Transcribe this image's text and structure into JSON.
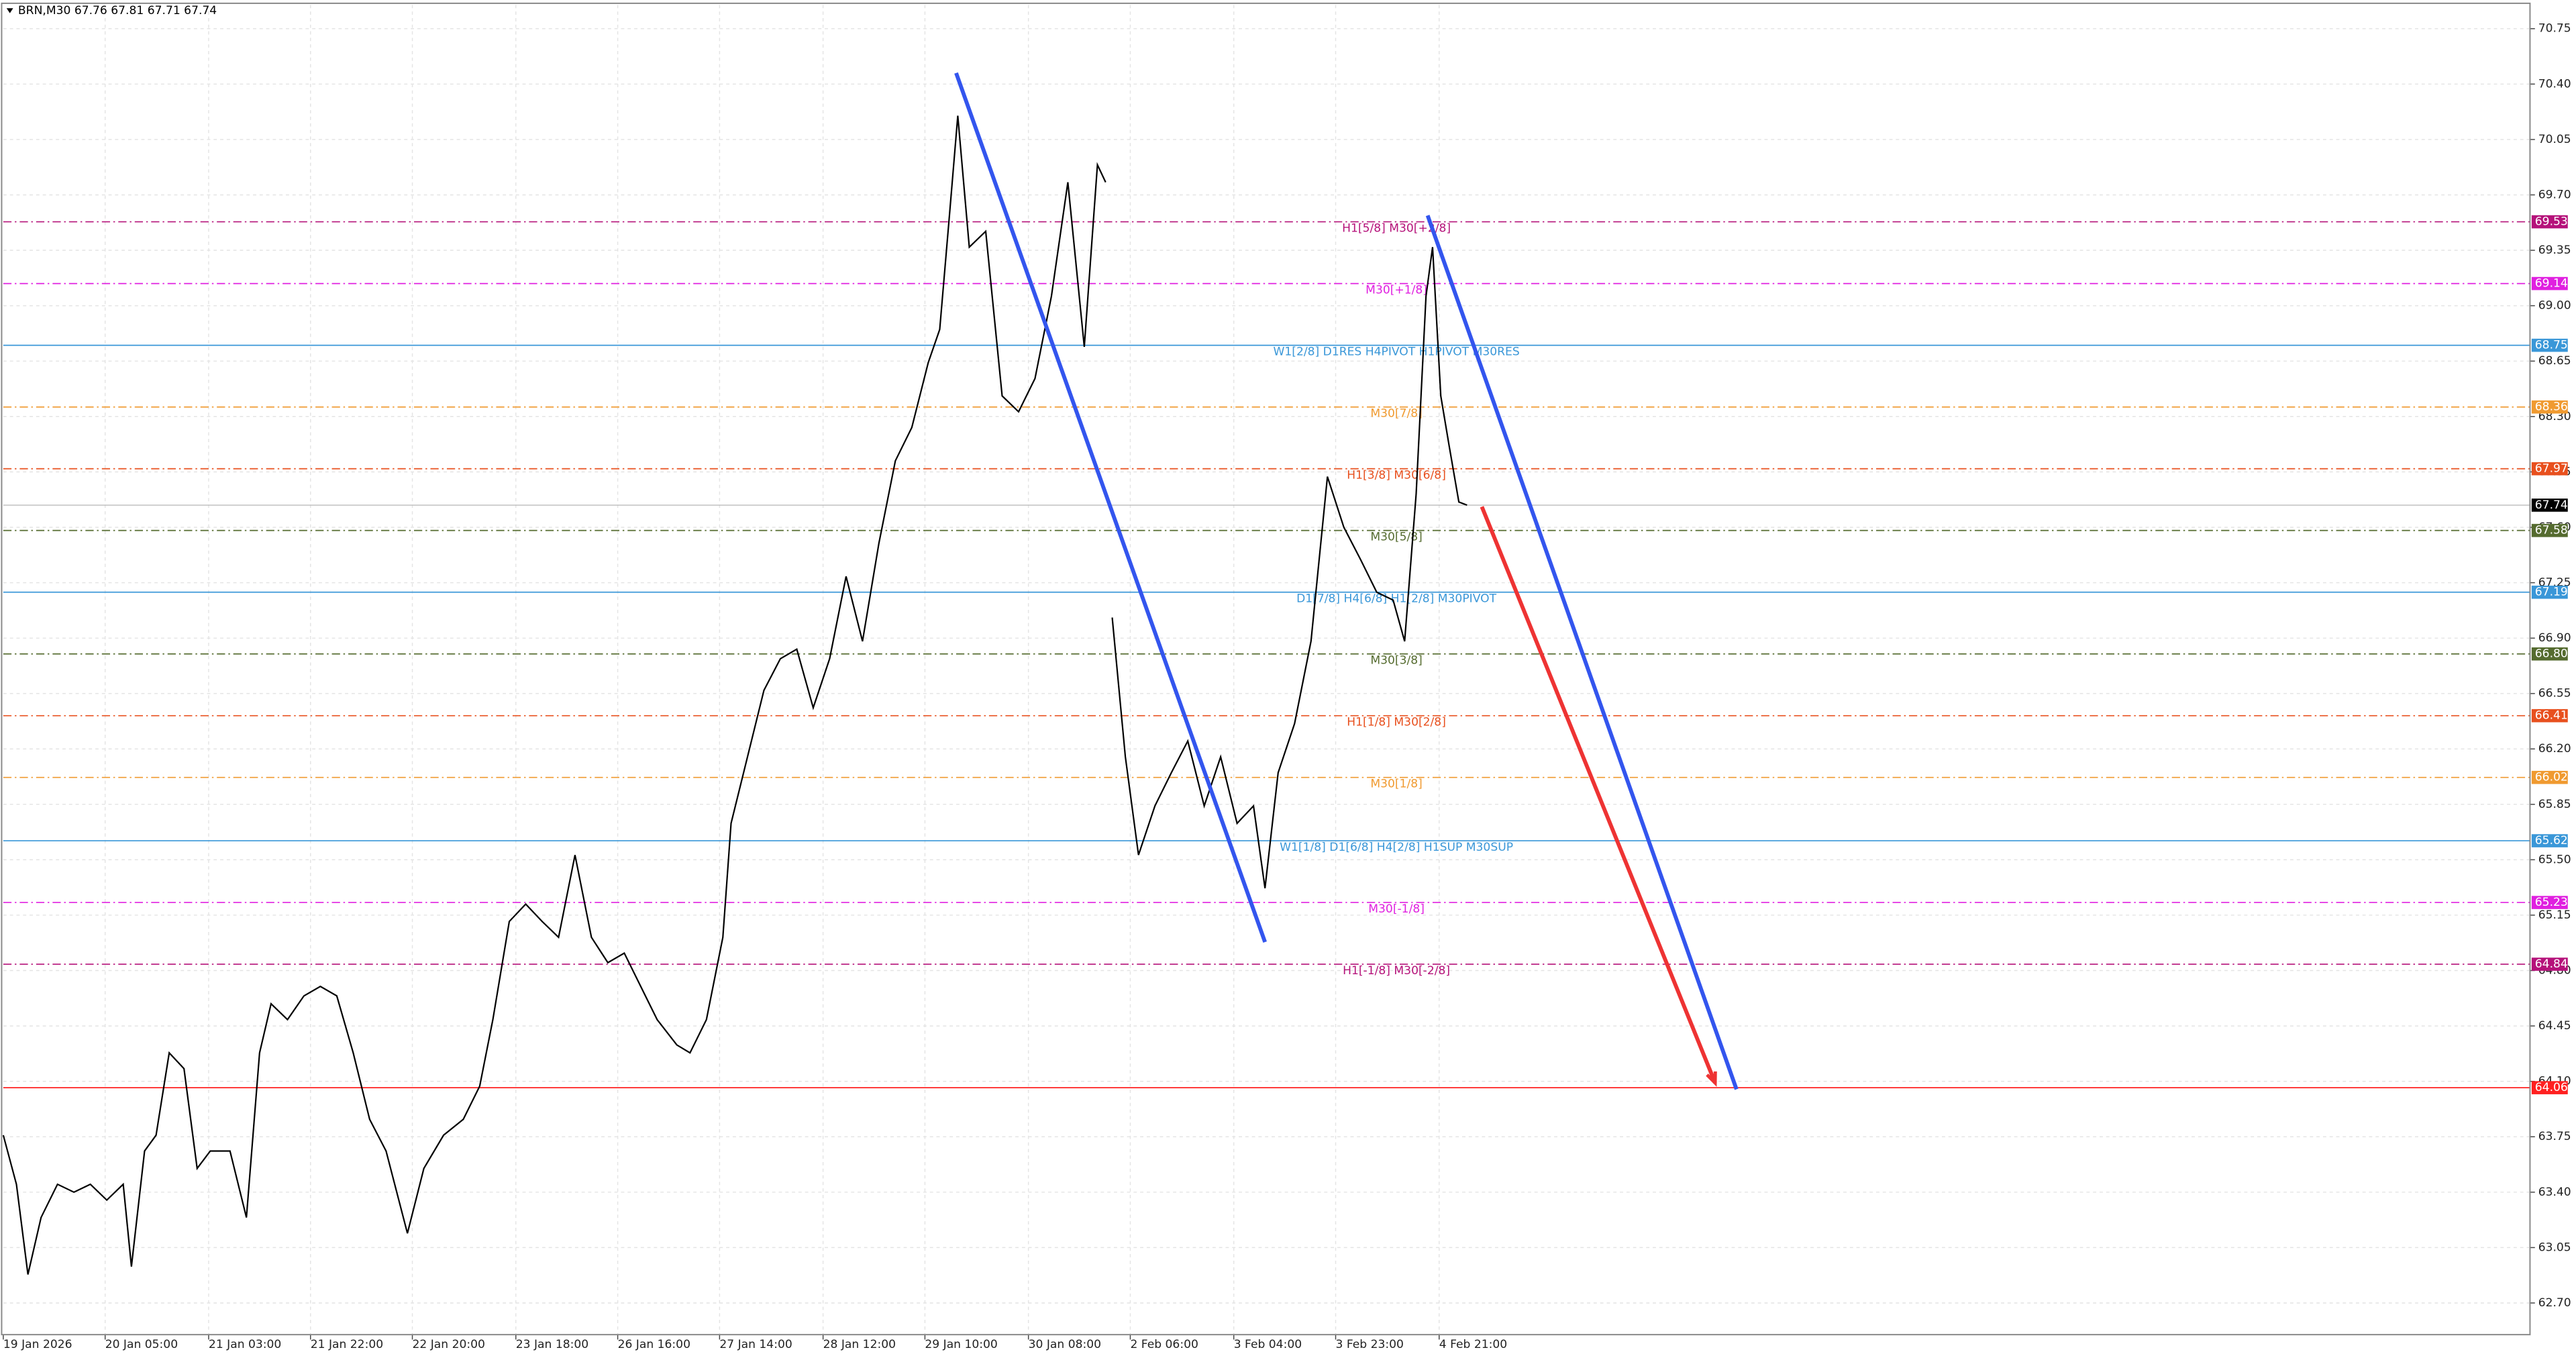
{
  "chart_data": {
    "type": "line",
    "title": "BRN,M30  67.76 67.81 67.71 67.74",
    "grid": true,
    "xlim": [
      0,
      1538
    ],
    "ylim": [
      62.5,
      70.9
    ],
    "xticks": [
      {
        "value": 0,
        "label": "19 Jan 2026"
      },
      {
        "value": 62,
        "label": "20 Jan 05:00"
      },
      {
        "value": 125,
        "label": "21 Jan 03:00"
      },
      {
        "value": 187,
        "label": "21 Jan 22:00"
      },
      {
        "value": 249,
        "label": "22 Jan 20:00"
      },
      {
        "value": 312,
        "label": "23 Jan 18:00"
      },
      {
        "value": 374,
        "label": "26 Jan 16:00"
      },
      {
        "value": 436,
        "label": "27 Jan 14:00"
      },
      {
        "value": 499,
        "label": "28 Jan 12:00"
      },
      {
        "value": 561,
        "label": "29 Jan 10:00"
      },
      {
        "value": 624,
        "label": "30 Jan 08:00"
      },
      {
        "value": 686,
        "label": "2 Feb 06:00"
      },
      {
        "value": 749,
        "label": "3 Feb 04:00"
      },
      {
        "value": 811,
        "label": "3 Feb 23:00"
      },
      {
        "value": 874,
        "label": "4 Feb 21:00"
      }
    ],
    "yticks": [
      {
        "value": 70.75,
        "label": "70.75"
      },
      {
        "value": 70.4,
        "label": "70.40"
      },
      {
        "value": 70.05,
        "label": "70.05"
      },
      {
        "value": 69.7,
        "label": "69.70"
      },
      {
        "value": 69.35,
        "label": "69.35"
      },
      {
        "value": 69.0,
        "label": "69.00"
      },
      {
        "value": 68.65,
        "label": "68.65"
      },
      {
        "value": 68.3,
        "label": "68.30"
      },
      {
        "value": 67.95,
        "label": "67.95"
      },
      {
        "value": 67.6,
        "label": "67.60"
      },
      {
        "value": 67.25,
        "label": "67.25"
      },
      {
        "value": 66.9,
        "label": "66.90"
      },
      {
        "value": 66.55,
        "label": "66.55"
      },
      {
        "value": 66.2,
        "label": "66.20"
      },
      {
        "value": 65.85,
        "label": "65.85"
      },
      {
        "value": 65.5,
        "label": "65.50"
      },
      {
        "value": 65.15,
        "label": "65.15"
      },
      {
        "value": 64.8,
        "label": "64.80"
      },
      {
        "value": 64.45,
        "label": "64.45"
      },
      {
        "value": 64.1,
        "label": "64.10"
      },
      {
        "value": 63.75,
        "label": "63.75"
      },
      {
        "value": 63.4,
        "label": "63.40"
      },
      {
        "value": 63.05,
        "label": "63.05"
      },
      {
        "value": 62.7,
        "label": "62.70"
      }
    ],
    "series": [
      {
        "name": "BRN",
        "color": "#000000",
        "x": [
          0,
          8,
          15,
          23,
          33,
          43,
          53,
          63,
          73,
          78,
          86,
          93,
          101,
          110,
          118,
          126,
          138,
          148,
          156,
          163,
          173,
          183,
          193,
          203,
          213,
          223,
          233,
          246,
          256,
          268,
          280,
          290,
          298,
          308,
          318,
          328,
          338,
          348,
          358,
          368,
          378,
          388,
          398,
          410,
          418,
          428,
          438,
          443,
          453,
          463,
          473,
          483,
          493,
          503,
          513,
          523,
          533,
          543,
          553,
          563,
          570,
          576,
          581,
          588,
          598,
          608,
          618,
          628,
          638,
          648,
          658,
          666,
          671,
          673,
          675,
          683,
          691,
          701,
          711,
          721,
          731,
          741,
          751,
          761,
          768,
          776,
          786,
          796,
          806,
          816,
          826,
          836,
          846,
          853,
          860,
          866,
          870,
          875,
          880,
          886,
          891
        ],
        "values": [
          63.76,
          63.45,
          62.88,
          63.24,
          63.45,
          63.4,
          63.45,
          63.35,
          63.45,
          62.93,
          63.66,
          63.76,
          64.28,
          64.18,
          63.55,
          63.66,
          63.66,
          63.24,
          64.28,
          64.59,
          64.49,
          64.64,
          64.7,
          64.64,
          64.28,
          63.86,
          63.66,
          63.14,
          63.55,
          63.76,
          63.86,
          64.07,
          64.49,
          65.11,
          65.22,
          65.11,
          65.01,
          65.53,
          65.01,
          64.85,
          64.91,
          64.7,
          64.49,
          64.33,
          64.28,
          64.49,
          65.01,
          65.73,
          66.15,
          66.57,
          66.77,
          66.83,
          66.46,
          66.77,
          67.29,
          66.88,
          67.5,
          68.02,
          68.23,
          68.64,
          68.85,
          69.58,
          70.2,
          69.37,
          69.47,
          68.43,
          68.33,
          68.54,
          69.06,
          69.78,
          68.74,
          69.89,
          69.78,
          null,
          67.03,
          66.15,
          65.53,
          65.84,
          66.05,
          66.25,
          65.84,
          66.15,
          65.73,
          65.84,
          65.32,
          66.05,
          66.36,
          66.88,
          67.92,
          67.6,
          67.4,
          67.19,
          67.14,
          66.88,
          67.81,
          69.06,
          69.37,
          68.43,
          68.12,
          67.76,
          67.74
        ]
      }
    ],
    "levels": [
      {
        "value": 69.53,
        "text": "H1[5/8] M30[+2/8]",
        "color": "#b5127a",
        "style": "dashdot"
      },
      {
        "value": 69.14,
        "text": "M30[+1/8]",
        "color": "#e020e0",
        "style": "dashdot"
      },
      {
        "value": 68.75,
        "text": "W1[2/8] D1RES H4PIVOT H1PIVOT M30RES",
        "color": "#3a97d8",
        "style": "solid"
      },
      {
        "value": 68.36,
        "text": "M30[7/8]",
        "color": "#f09a30",
        "style": "dashdot"
      },
      {
        "value": 67.97,
        "text": "H1[3/8] M30[6/8]",
        "color": "#e8501e",
        "style": "dashdot"
      },
      {
        "value": 67.58,
        "text": "M30[5/8]",
        "color": "#556b2f",
        "style": "dashdot"
      },
      {
        "value": 67.19,
        "text": "D1[7/8] H4[6/8] H1[2/8] M30PIVOT",
        "color": "#3a97d8",
        "style": "solid"
      },
      {
        "value": 66.8,
        "value_label": "66.80",
        "text": "M30[3/8]",
        "color": "#556b2f",
        "style": "dashdot"
      },
      {
        "value": 66.41,
        "text": "H1[1/8] M30[2/8]",
        "color": "#e8501e",
        "style": "dashdot"
      },
      {
        "value": 66.02,
        "text": "M30[1/8]",
        "color": "#f09a30",
        "style": "dashdot"
      },
      {
        "value": 65.62,
        "text": "W1[1/8] D1[6/8] H4[2/8] H1SUP M30SUP",
        "color": "#3a97d8",
        "style": "solid"
      },
      {
        "value": 65.23,
        "text": "M30[-1/8]",
        "color": "#e020e0",
        "style": "dashdot"
      },
      {
        "value": 64.84,
        "text": "H1[-1/8] M30[-2/8]",
        "color": "#b5127a",
        "style": "dashdot"
      },
      {
        "value": 64.06,
        "color": "#ff2020",
        "style": "solid"
      }
    ],
    "current": {
      "value": 67.74,
      "color": "#000000"
    },
    "trendlines": [
      {
        "x": [
          580,
          768
        ],
        "values": [
          70.47,
          64.98
        ],
        "color": "#3355ee"
      },
      {
        "x": [
          867,
          1055
        ],
        "values": [
          69.57,
          64.05
        ],
        "color": "#3355ee"
      },
      {
        "x": [
          900,
          1042
        ],
        "values": [
          67.73,
          64.09
        ],
        "color": "#ee3333",
        "arrow": true
      }
    ]
  }
}
